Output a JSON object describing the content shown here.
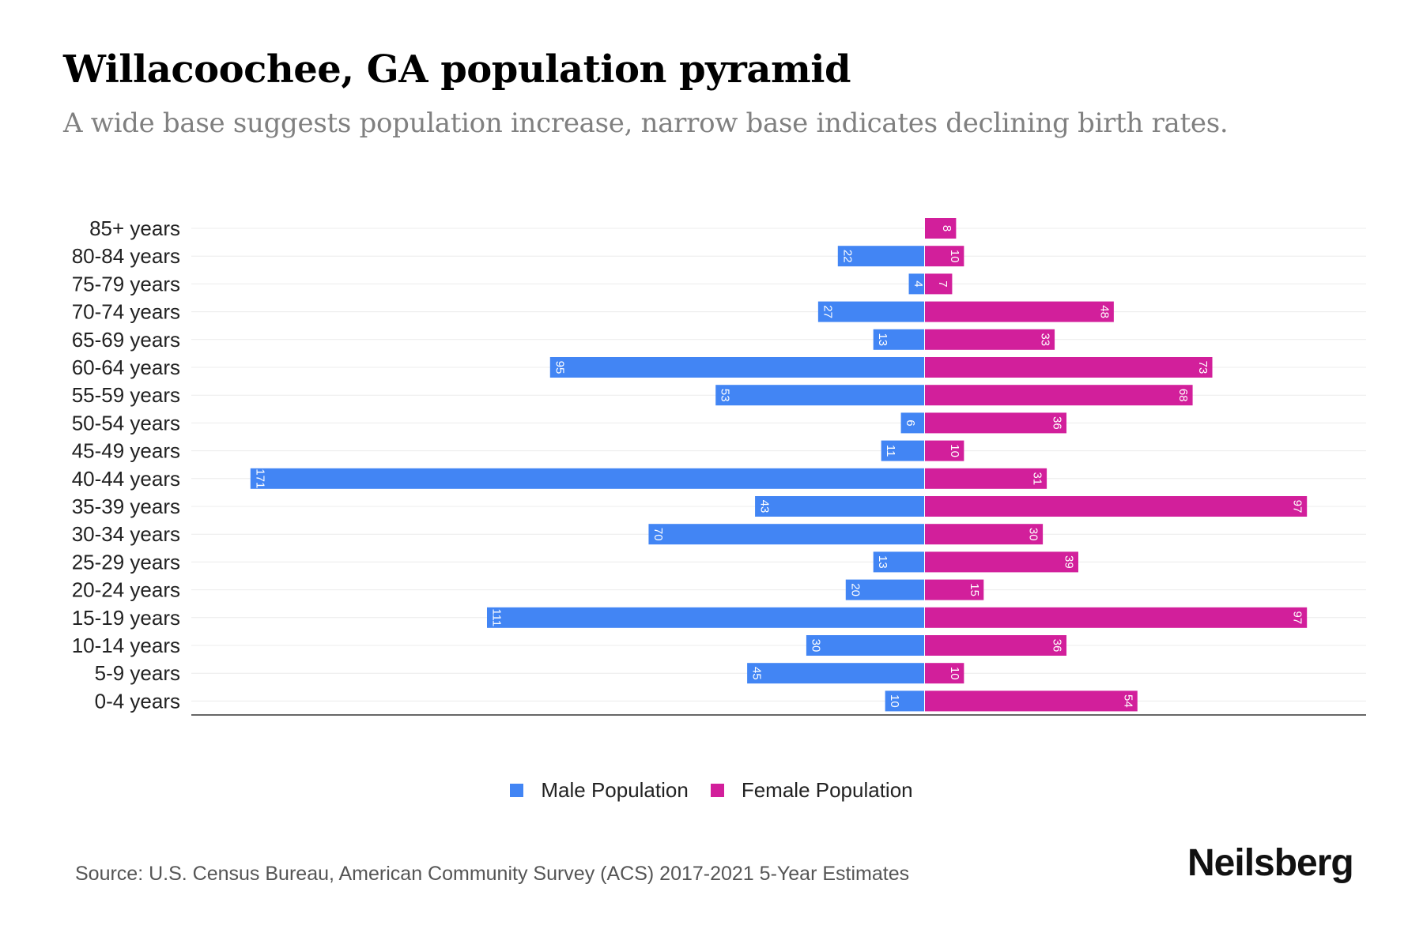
{
  "header": {
    "title": "Willacoochee, GA population pyramid",
    "subtitle": "A wide base suggests population increase, narrow base indicates declining birth rates."
  },
  "chart_data": {
    "type": "bar",
    "orientation": "horizontal-pyramid",
    "categories": [
      "85+ years",
      "80-84 years",
      "75-79 years",
      "70-74 years",
      "65-69 years",
      "60-64 years",
      "55-59 years",
      "50-54 years",
      "45-49 years",
      "40-44 years",
      "35-39 years",
      "30-34 years",
      "25-29 years",
      "20-24 years",
      "15-19 years",
      "10-14 years",
      "5-9 years",
      "0-4 years"
    ],
    "series": [
      {
        "name": "Male Population",
        "color": "#4285f4",
        "values": [
          0,
          22,
          4,
          27,
          13,
          95,
          53,
          6,
          11,
          171,
          43,
          70,
          13,
          20,
          111,
          30,
          45,
          10
        ]
      },
      {
        "name": "Female Population",
        "color": "#d21f9b",
        "values": [
          8,
          10,
          7,
          48,
          33,
          73,
          68,
          36,
          10,
          31,
          97,
          30,
          39,
          15,
          97,
          36,
          10,
          54
        ]
      }
    ],
    "xlim": [
      -186,
      112
    ],
    "grid": true,
    "legend": "bottom-center"
  },
  "legend": {
    "male_label": "Male Population",
    "female_label": "Female Population",
    "male_color": "#4285f4",
    "female_color": "#d21f9b"
  },
  "footer": {
    "source": "Source: U.S. Census Bureau, American Community Survey (ACS) 2017-2021 5-Year Estimates",
    "brand": "Neilsberg"
  }
}
